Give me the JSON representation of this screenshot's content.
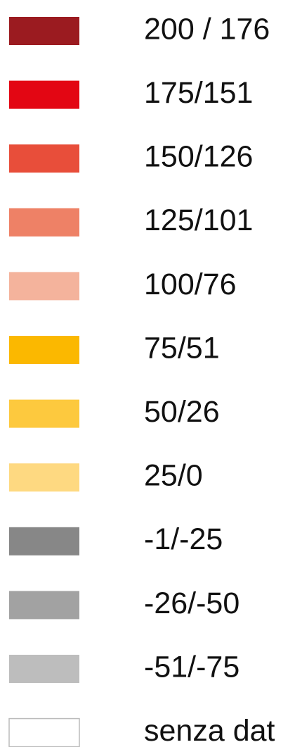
{
  "legend": {
    "items": [
      {
        "label": "200 / 176",
        "color": "#9b1b20"
      },
      {
        "label": "175/151",
        "color": "#e30613"
      },
      {
        "label": "150/126",
        "color": "#e84e3a"
      },
      {
        "label": "125/101",
        "color": "#ee8166"
      },
      {
        "label": "100/76",
        "color": "#f4b39c"
      },
      {
        "label": "75/51",
        "color": "#fbb800"
      },
      {
        "label": "50/26",
        "color": "#fdc93e"
      },
      {
        "label": "25/0",
        "color": "#fed981"
      },
      {
        "label": "-1/-25",
        "color": "#878787"
      },
      {
        "label": "-26/-50",
        "color": "#a2a2a2"
      },
      {
        "label": "-51/-75",
        "color": "#bdbdbd"
      },
      {
        "label": "senza dat",
        "color": "#ffffff"
      }
    ]
  }
}
